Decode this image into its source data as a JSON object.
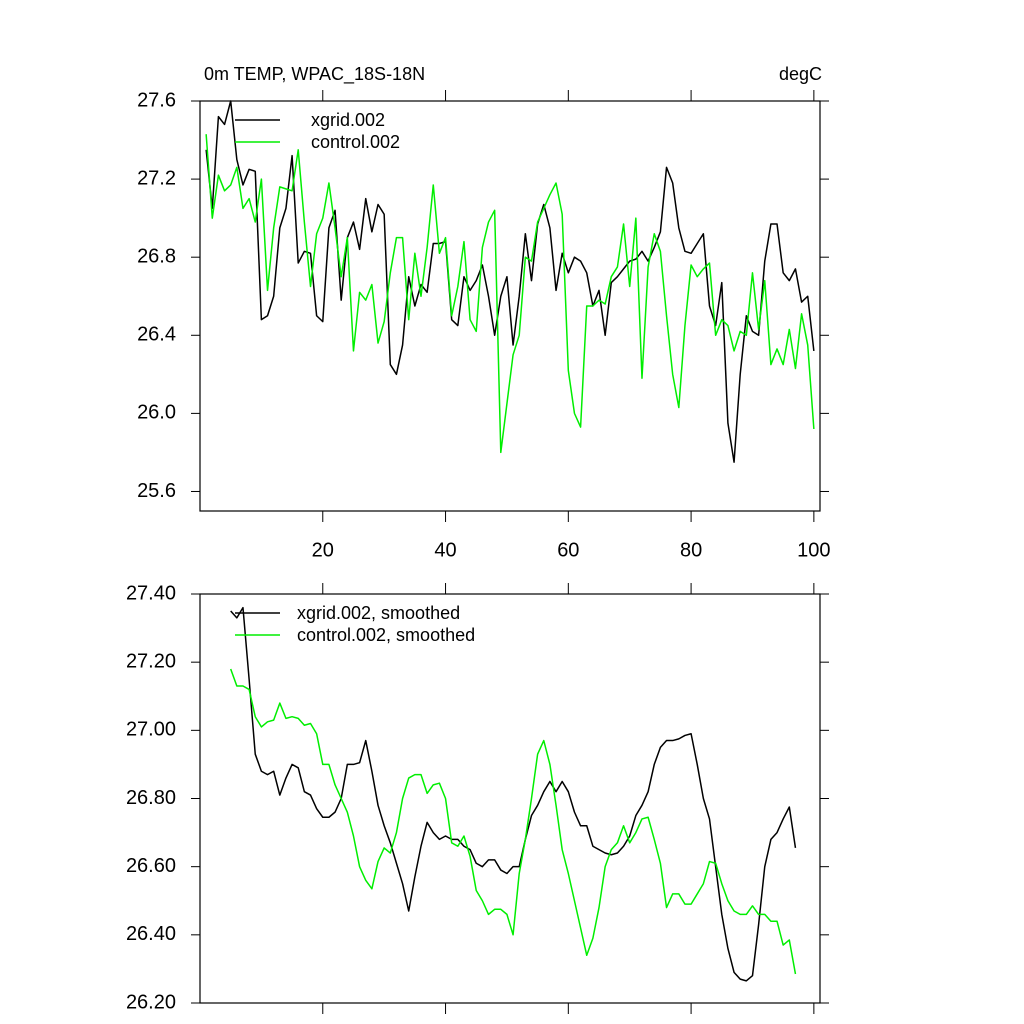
{
  "chart_data": [
    {
      "type": "line",
      "title": "0m TEMP, WPAC_18S-18N",
      "units": "degC",
      "x": [
        1,
        2,
        3,
        4,
        5,
        6,
        7,
        8,
        9,
        10,
        11,
        12,
        13,
        14,
        15,
        16,
        17,
        18,
        19,
        20,
        21,
        22,
        23,
        24,
        25,
        26,
        27,
        28,
        29,
        30,
        31,
        32,
        33,
        34,
        35,
        36,
        37,
        38,
        39,
        40,
        41,
        42,
        43,
        44,
        45,
        46,
        47,
        48,
        49,
        50,
        51,
        52,
        53,
        54,
        55,
        56,
        57,
        58,
        59,
        60,
        61,
        62,
        63,
        64,
        65,
        66,
        67,
        68,
        69,
        70,
        71,
        72,
        73,
        74,
        75,
        76,
        77,
        78,
        79,
        80,
        81,
        82,
        83,
        84,
        85,
        86,
        87,
        88,
        89,
        90,
        91,
        92,
        93,
        94,
        95,
        96,
        97,
        98,
        99,
        100
      ],
      "series": [
        {
          "name": "xgrid.002",
          "color": "#000000",
          "values": [
            27.35,
            27.05,
            27.52,
            27.48,
            27.6,
            27.3,
            27.17,
            27.25,
            27.24,
            26.48,
            26.5,
            26.6,
            26.95,
            27.05,
            27.32,
            26.77,
            26.83,
            26.82,
            26.5,
            26.47,
            26.95,
            27.04,
            26.58,
            26.9,
            26.98,
            26.84,
            27.1,
            26.93,
            27.07,
            27.02,
            26.25,
            26.2,
            26.35,
            26.7,
            26.55,
            26.66,
            26.62,
            26.87,
            26.87,
            26.88,
            26.48,
            26.45,
            26.7,
            26.63,
            26.68,
            26.76,
            26.6,
            26.4,
            26.6,
            26.7,
            26.35,
            26.6,
            26.92,
            26.68,
            26.97,
            27.07,
            26.95,
            26.63,
            26.82,
            26.72,
            26.8,
            26.78,
            26.72,
            26.55,
            26.63,
            26.4,
            26.67,
            26.7,
            26.74,
            26.78,
            26.79,
            26.83,
            26.78,
            26.85,
            26.93,
            27.26,
            27.18,
            26.95,
            26.83,
            26.82,
            26.87,
            26.92,
            26.55,
            26.45,
            26.67,
            25.95,
            25.75,
            26.2,
            26.5,
            26.42,
            26.4,
            26.78,
            26.97,
            26.97,
            26.72,
            26.68,
            26.74,
            26.57,
            26.6,
            26.32
          ]
        },
        {
          "name": "control.002",
          "color": "#00ee00",
          "values": [
            27.43,
            27.0,
            27.22,
            27.14,
            27.17,
            27.26,
            27.05,
            27.1,
            26.98,
            27.2,
            26.63,
            26.95,
            27.16,
            27.15,
            27.14,
            27.35,
            26.98,
            26.65,
            26.92,
            27.0,
            27.18,
            26.95,
            26.7,
            26.9,
            26.32,
            26.62,
            26.58,
            26.66,
            26.36,
            26.47,
            26.72,
            26.9,
            26.9,
            26.48,
            26.82,
            26.6,
            26.85,
            27.17,
            26.82,
            26.9,
            26.5,
            26.65,
            26.88,
            26.48,
            26.42,
            26.85,
            26.98,
            27.04,
            25.8,
            26.05,
            26.3,
            26.4,
            26.8,
            26.78,
            26.98,
            27.05,
            27.12,
            27.18,
            27.02,
            26.22,
            26.0,
            25.93,
            26.55,
            26.55,
            26.58,
            26.56,
            26.7,
            26.75,
            26.97,
            26.65,
            27.0,
            26.18,
            26.75,
            26.92,
            26.83,
            26.5,
            26.2,
            26.03,
            26.45,
            26.76,
            26.7,
            26.74,
            26.77,
            26.4,
            26.48,
            26.45,
            26.32,
            26.42,
            26.4,
            26.72,
            26.43,
            26.68,
            26.25,
            26.33,
            26.25,
            26.43,
            26.23,
            26.51,
            26.35,
            25.92
          ]
        }
      ],
      "xlim": [
        0,
        101
      ],
      "xticks": [
        20,
        40,
        60,
        80,
        100
      ],
      "ylim": [
        25.5,
        27.6
      ],
      "yticks": [
        25.6,
        {
          "value": 26,
          "label": "26.0"
        },
        26.4,
        26.8,
        27.2,
        27.6
      ],
      "legend": "top-left"
    },
    {
      "type": "line",
      "x": [
        5,
        6,
        7,
        8,
        9,
        10,
        11,
        12,
        13,
        14,
        15,
        16,
        17,
        18,
        19,
        20,
        21,
        22,
        23,
        24,
        25,
        26,
        27,
        28,
        29,
        30,
        31,
        32,
        33,
        34,
        35,
        36,
        37,
        38,
        39,
        40,
        41,
        42,
        43,
        44,
        45,
        46,
        47,
        48,
        49,
        50,
        51,
        52,
        53,
        54,
        55,
        56,
        57,
        58,
        59,
        60,
        61,
        62,
        63,
        64,
        65,
        66,
        67,
        68,
        69,
        70,
        71,
        72,
        73,
        74,
        75,
        76,
        77,
        78,
        79,
        80,
        81,
        82,
        83,
        84,
        85,
        86,
        87,
        88,
        89,
        90,
        91,
        92,
        93,
        94,
        95,
        96,
        97
      ],
      "series": [
        {
          "name": "xgrid.002, smoothed",
          "color": "#000000",
          "values": [
            27.35,
            27.33,
            27.36,
            27.15,
            26.93,
            26.88,
            26.87,
            26.88,
            26.81,
            26.86,
            26.9,
            26.89,
            26.82,
            26.81,
            26.77,
            26.745,
            26.745,
            26.76,
            26.8,
            26.9,
            26.9,
            26.905,
            26.97,
            26.88,
            26.78,
            26.72,
            26.67,
            26.61,
            26.55,
            26.47,
            26.57,
            26.66,
            26.73,
            26.7,
            26.68,
            26.69,
            26.68,
            26.68,
            26.66,
            26.65,
            26.61,
            26.6,
            26.62,
            26.62,
            26.59,
            26.58,
            26.6,
            26.6,
            26.68,
            26.75,
            26.78,
            26.82,
            26.85,
            26.82,
            26.85,
            26.82,
            26.76,
            26.72,
            26.72,
            26.66,
            26.65,
            26.64,
            26.635,
            26.64,
            26.66,
            26.69,
            26.75,
            26.78,
            26.82,
            26.9,
            26.95,
            26.97,
            26.97,
            26.975,
            26.985,
            26.99,
            26.9,
            26.8,
            26.74,
            26.6,
            26.46,
            26.36,
            26.29,
            26.27,
            26.265,
            26.28,
            26.43,
            26.6,
            26.68,
            26.7,
            26.74,
            26.775,
            26.655
          ]
        },
        {
          "name": "control.002, smoothed",
          "color": "#00ee00",
          "values": [
            27.18,
            27.13,
            27.13,
            27.12,
            27.04,
            27.01,
            27.025,
            27.03,
            27.08,
            27.035,
            27.04,
            27.035,
            27.015,
            27.02,
            26.99,
            26.9,
            26.9,
            26.84,
            26.8,
            26.76,
            26.69,
            26.6,
            26.56,
            26.535,
            26.615,
            26.655,
            26.64,
            26.7,
            26.8,
            26.86,
            26.87,
            26.87,
            26.815,
            26.84,
            26.845,
            26.8,
            26.67,
            26.66,
            26.69,
            26.63,
            26.53,
            26.5,
            26.46,
            26.475,
            26.475,
            26.46,
            26.4,
            26.58,
            26.68,
            26.8,
            26.93,
            26.97,
            26.9,
            26.78,
            26.65,
            26.58,
            26.5,
            26.42,
            26.34,
            26.39,
            26.48,
            26.6,
            26.65,
            26.67,
            26.72,
            26.67,
            26.7,
            26.74,
            26.745,
            26.68,
            26.61,
            26.48,
            26.52,
            26.52,
            26.49,
            26.49,
            26.52,
            26.55,
            26.615,
            26.61,
            26.55,
            26.5,
            26.47,
            26.46,
            26.46,
            26.485,
            26.46,
            26.46,
            26.44,
            26.44,
            26.37,
            26.385,
            26.285
          ]
        }
      ],
      "xlim": [
        0,
        101
      ],
      "xticks": [
        20,
        40,
        60,
        80,
        100
      ],
      "ylim": [
        26.2,
        27.4
      ],
      "yticks": [
        {
          "value": 26.2,
          "label": "26.20"
        },
        {
          "value": 26.4,
          "label": "26.40"
        },
        {
          "value": 26.6,
          "label": "26.60"
        },
        {
          "value": 26.8,
          "label": "26.80"
        },
        {
          "value": 27,
          "label": "27.00"
        },
        {
          "value": 27.2,
          "label": "27.20"
        },
        {
          "value": 27.4,
          "label": "27.40"
        }
      ],
      "legend": "top-left"
    }
  ]
}
